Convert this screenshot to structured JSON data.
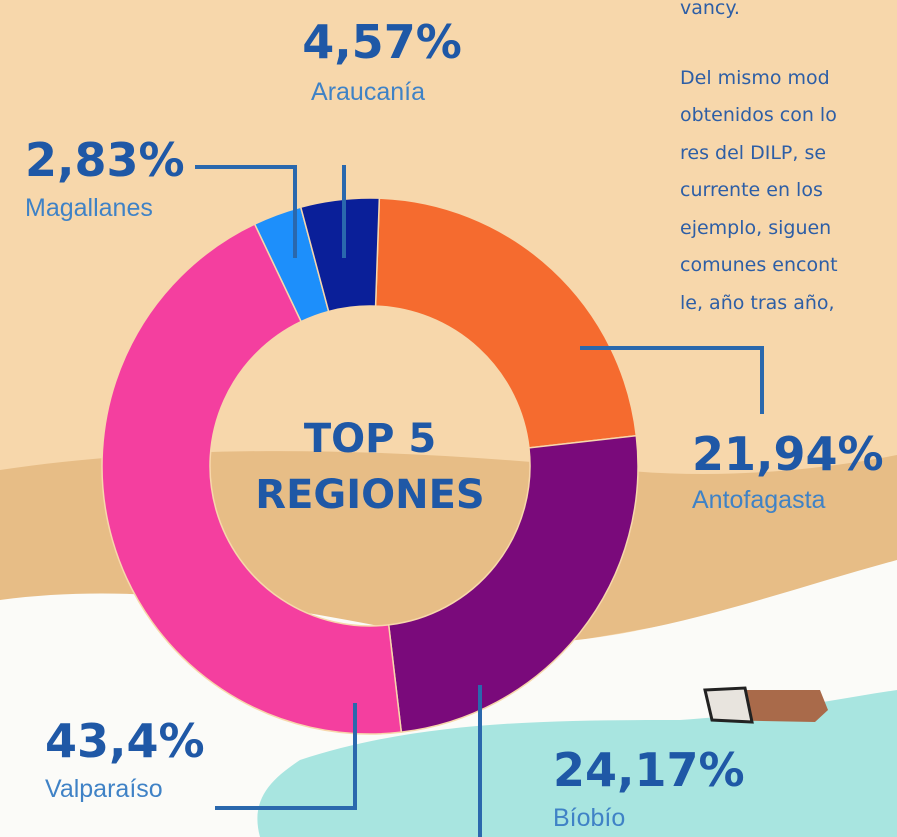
{
  "chart_data": {
    "type": "donut",
    "center_text": [
      "TOP 5",
      "REGIONES"
    ],
    "categories": [
      "Antofagasta",
      "Bíobío",
      "Valparaíso",
      "Magallanes",
      "Araucanía"
    ],
    "values": [
      21.94,
      24.17,
      43.4,
      2.83,
      4.57
    ],
    "value_labels": [
      "21,94%",
      "24,17%",
      "43,4%",
      "2,83%",
      "4,57%"
    ],
    "colors": [
      "#f56b2f",
      "#7a0a7b",
      "#f43f9f",
      "#1d8ffb",
      "#0a1f99"
    ]
  },
  "body_text": [
    "vancy.",
    "Del mismo mod",
    "obtenidos con lo",
    "res del DILP, se",
    "currente en los",
    "ejemplo, siguen",
    "comunes encont",
    "le, año tras año,"
  ]
}
